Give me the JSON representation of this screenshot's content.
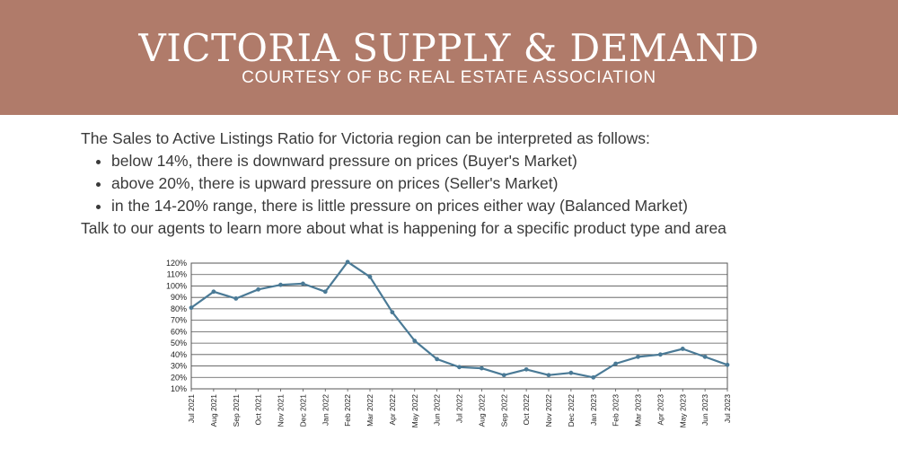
{
  "header": {
    "title": "VICTORIA SUPPLY & DEMAND",
    "subtitle": "COURTESY OF BC REAL ESTATE ASSOCIATION",
    "background_color": "#b07b6a"
  },
  "content": {
    "intro": "The Sales to Active Listings Ratio for Victoria region can be interpreted as follows:",
    "bullets": [
      "below 14%, there is downward pressure on prices (Buyer's Market)",
      "above 20%, there is upward pressure on prices (Seller's Market)",
      "in the 14-20% range, there is little pressure on prices either way (Balanced Market)"
    ],
    "outro": "Talk to our agents to learn more about what is happening for a specific product type and area"
  },
  "chart_data": {
    "type": "line",
    "title": "",
    "xlabel": "",
    "ylabel": "",
    "ylim": [
      10,
      120
    ],
    "y_ticks": [
      "10%",
      "20%",
      "30%",
      "40%",
      "50%",
      "60%",
      "70%",
      "80%",
      "90%",
      "100%",
      "110%",
      "120%"
    ],
    "grid": true,
    "legend": "none",
    "line_color": "#4a7a96",
    "categories": [
      "Jul 2021",
      "Aug 2021",
      "Sep 2021",
      "Oct 2021",
      "Nov 2021",
      "Dec 2021",
      "Jan 2022",
      "Feb 2022",
      "Mar 2022",
      "Apr 2022",
      "May 2022",
      "Jun 2022",
      "Jul 2022",
      "Aug 2022",
      "Sep 2022",
      "Oct 2022",
      "Nov 2022",
      "Dec 2022",
      "Jan 2023",
      "Feb 2023",
      "Mar 2023",
      "Apr 2023",
      "May 2023",
      "Jun 2023",
      "Jul 2023"
    ],
    "values": [
      81,
      95,
      89,
      97,
      101,
      102,
      95,
      121,
      108,
      77,
      52,
      36,
      29,
      28,
      22,
      27,
      22,
      24,
      20,
      32,
      38,
      40,
      45,
      38,
      31
    ]
  }
}
